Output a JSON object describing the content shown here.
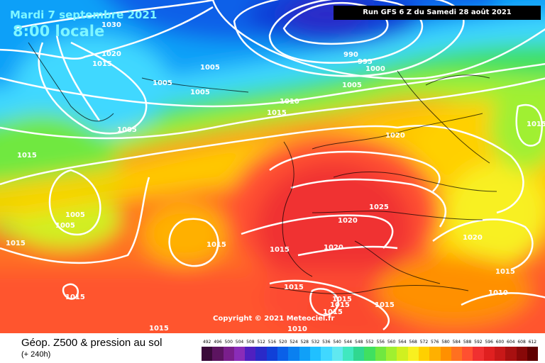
{
  "header": {
    "valid_date": "Mardi 7 septembre 2021",
    "valid_time": "8:00 locale",
    "run_info": "Run GFS 6 Z du Samedi 28 août 2021"
  },
  "copyright": "Copyright © 2021 Meteociel.fr",
  "legend": {
    "title": "Géop. Z500 & pression au sol",
    "forecast_step": "(+ 240h)",
    "levels": [
      "492",
      "496",
      "500",
      "504",
      "508",
      "512",
      "516",
      "520",
      "524",
      "528",
      "532",
      "536",
      "540",
      "544",
      "548",
      "552",
      "556",
      "560",
      "564",
      "568",
      "572",
      "576",
      "580",
      "584",
      "588",
      "592",
      "596",
      "600",
      "604",
      "608",
      "612"
    ],
    "colors": [
      "#3a0a3a",
      "#5c1460",
      "#7a1e8c",
      "#8a2cb8",
      "#5020c0",
      "#2a2ac8",
      "#1040d8",
      "#0a60e8",
      "#0a80f0",
      "#10a0f8",
      "#20c0ff",
      "#40d8ff",
      "#60e8f0",
      "#40e8c0",
      "#30d890",
      "#40e060",
      "#70e840",
      "#a0f030",
      "#d0f020",
      "#f8f020",
      "#ffd000",
      "#ffb000",
      "#ff9000",
      "#ff7020",
      "#ff5030",
      "#f03030",
      "#e02020",
      "#c81818",
      "#a81010",
      "#880808",
      "#600000"
    ]
  },
  "isobar_labels": [
    {
      "name": "1030",
      "text": "1030"
    },
    {
      "name": "1020",
      "text": "1020"
    },
    {
      "name": "1015",
      "text": "1015"
    },
    {
      "name": "1005",
      "text": "1005"
    },
    {
      "name": "990",
      "text": "990"
    },
    {
      "name": "995",
      "text": "995"
    },
    {
      "name": "1000",
      "text": "1000"
    },
    {
      "name": "1010",
      "text": "1010"
    },
    {
      "name": "1025",
      "text": "1025"
    }
  ]
}
